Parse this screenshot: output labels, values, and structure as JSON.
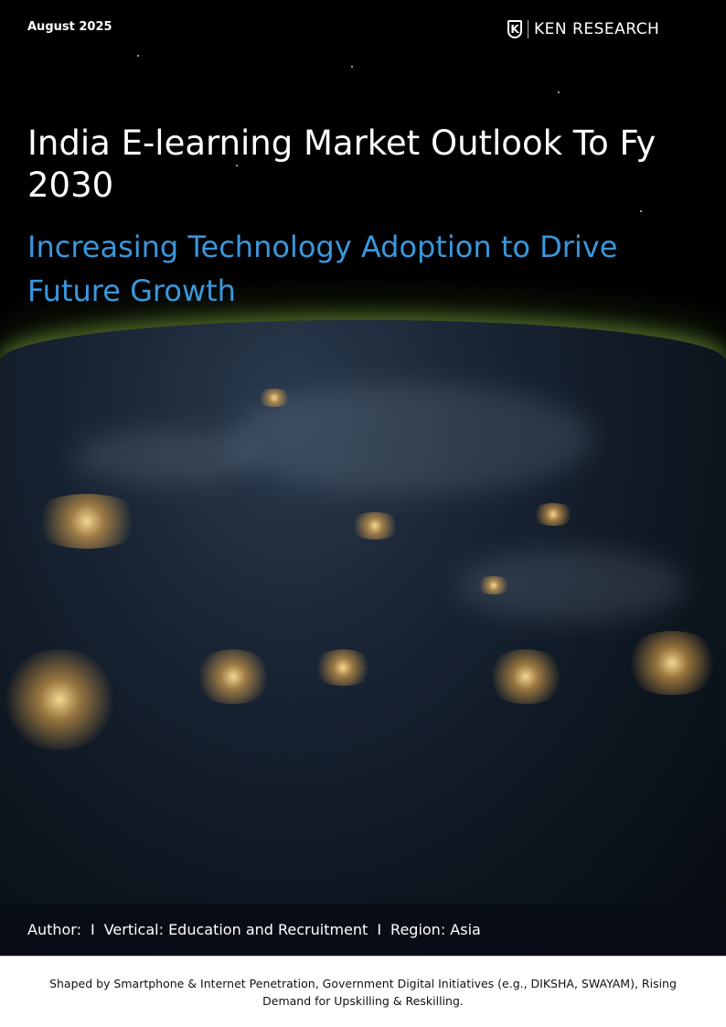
{
  "header": {
    "date": "August 2025",
    "logo": {
      "mark": "K",
      "name": "KEN RESEARCH"
    }
  },
  "title": "India E-learning Market Outlook To Fy 2030",
  "subtitle": "Increasing Technology Adoption to Drive Future Growth",
  "meta": {
    "author": "Author:",
    "separator": "I",
    "vertical": "Vertical: Education and Recruitment",
    "region": "Region: Asia"
  },
  "footer": {
    "text": "Shaped by Smartphone & Internet Penetration, Government Digital Initiatives (e.g., DIKSHA, SWAYAM), Rising Demand for Upskilling & Reskilling."
  },
  "colors": {
    "accent": "#3a97dc",
    "background": "#000000"
  }
}
